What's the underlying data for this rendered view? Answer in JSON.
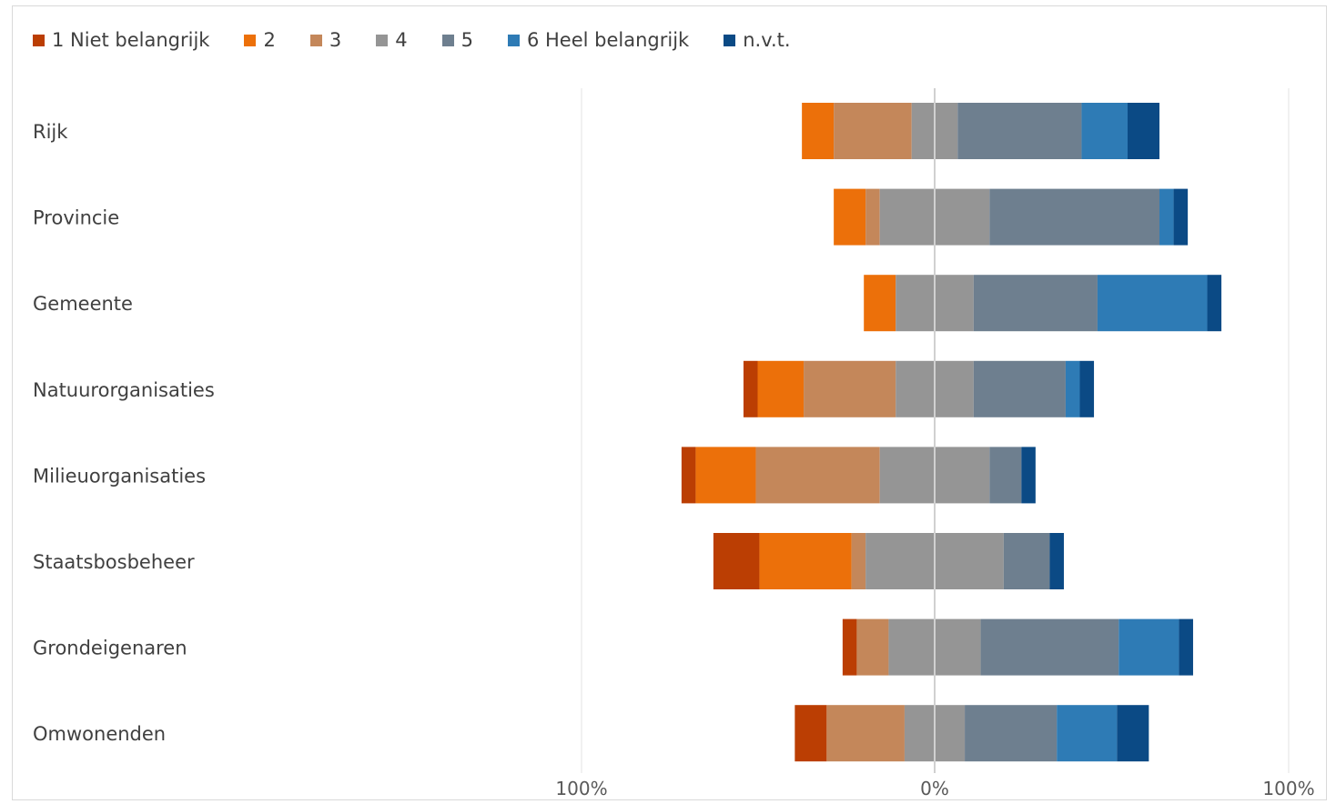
{
  "chart_data": {
    "type": "bar",
    "orientation": "horizontal",
    "stacked": "diverging",
    "categories": [
      "Rijk",
      "Provincie",
      "Gemeente",
      "Natuurorganisaties",
      "Milieuorganisaties",
      "Staatsbosbeheer",
      "Grondeigenaren",
      "Omwonenden"
    ],
    "series": [
      {
        "name": "1 Niet belangrijk",
        "color": "#bb3e03",
        "side": "negative",
        "values": [
          0,
          0,
          0,
          4,
          4,
          13,
          4,
          9
        ]
      },
      {
        "name": "2",
        "color": "#ec700a",
        "side": "negative",
        "values": [
          9,
          9,
          9,
          13,
          17,
          26,
          0,
          0
        ]
      },
      {
        "name": "3",
        "color": "#c4875a",
        "side": "negative",
        "values": [
          22,
          4,
          0,
          26,
          35,
          4,
          9,
          22
        ]
      },
      {
        "name": "4",
        "color": "#959595",
        "side": "split",
        "values": [
          13,
          31,
          22,
          22,
          31,
          39,
          26,
          17
        ]
      },
      {
        "name": "5",
        "color": "#6e7f8f",
        "side": "positive",
        "values": [
          35,
          48,
          35,
          26,
          9,
          13,
          39,
          26
        ]
      },
      {
        "name": "6 Heel belangrijk",
        "color": "#2e7bb5",
        "side": "positive",
        "values": [
          13,
          4,
          31,
          4,
          0,
          0,
          17,
          17
        ]
      },
      {
        "name": "n.v.t.",
        "color": "#0b4a85",
        "side": "positive",
        "values": [
          9,
          4,
          4,
          4,
          4,
          4,
          4,
          9
        ]
      }
    ],
    "xlim": [
      -100,
      100
    ],
    "x_ticks": [
      "100%",
      "0%",
      "100%"
    ],
    "grid": true,
    "legend_position": "top"
  }
}
